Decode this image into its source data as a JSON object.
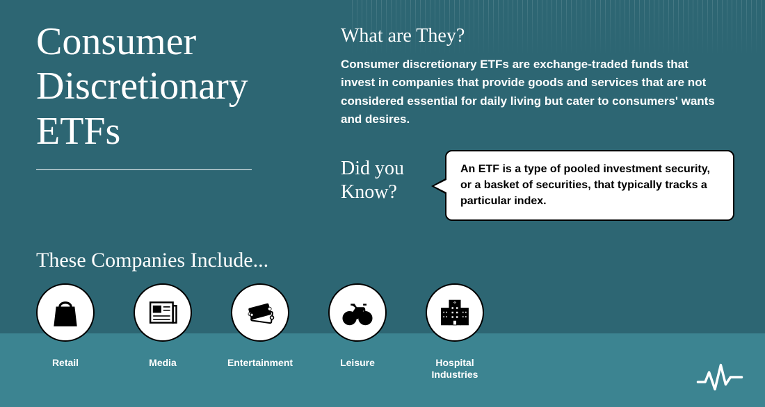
{
  "colors": {
    "bg_top": "#2d6673",
    "bg_bottom": "#3c8491",
    "text_light": "#ffffff",
    "text_dark": "#000000",
    "speech_bg": "#ffffff",
    "speech_border": "#000000"
  },
  "typography": {
    "title_family": "Georgia, serif",
    "body_family": "Arial, Helvetica, sans-serif",
    "title_size_pt": 42,
    "section_heading_size_pt": 21,
    "body_size_pt": 13,
    "label_size_pt": 11
  },
  "title": "Consumer\nDiscretionary\nETFs",
  "what": {
    "heading": "What are They?",
    "body": "Consumer discretionary ETFs are exchange-traded funds that invest in companies that provide goods and services that are not considered essential for daily living but cater to consumers' wants and desires."
  },
  "did_you_know": {
    "heading": "Did you\nKnow?",
    "callout": "An ETF is a type of pooled investment security, or a basket of securities, that typically tracks a particular index."
  },
  "companies": {
    "heading": "These Companies Include...",
    "items": [
      {
        "label": "Retail",
        "icon": "shopping-bag-icon"
      },
      {
        "label": "Media",
        "icon": "newspaper-icon"
      },
      {
        "label": "Entertainment",
        "icon": "tickets-icon"
      },
      {
        "label": "Leisure",
        "icon": "bicycle-icon"
      },
      {
        "label": "Hospital\nIndustries",
        "icon": "hospital-icon"
      }
    ]
  },
  "logo_name": "pulse-logo"
}
